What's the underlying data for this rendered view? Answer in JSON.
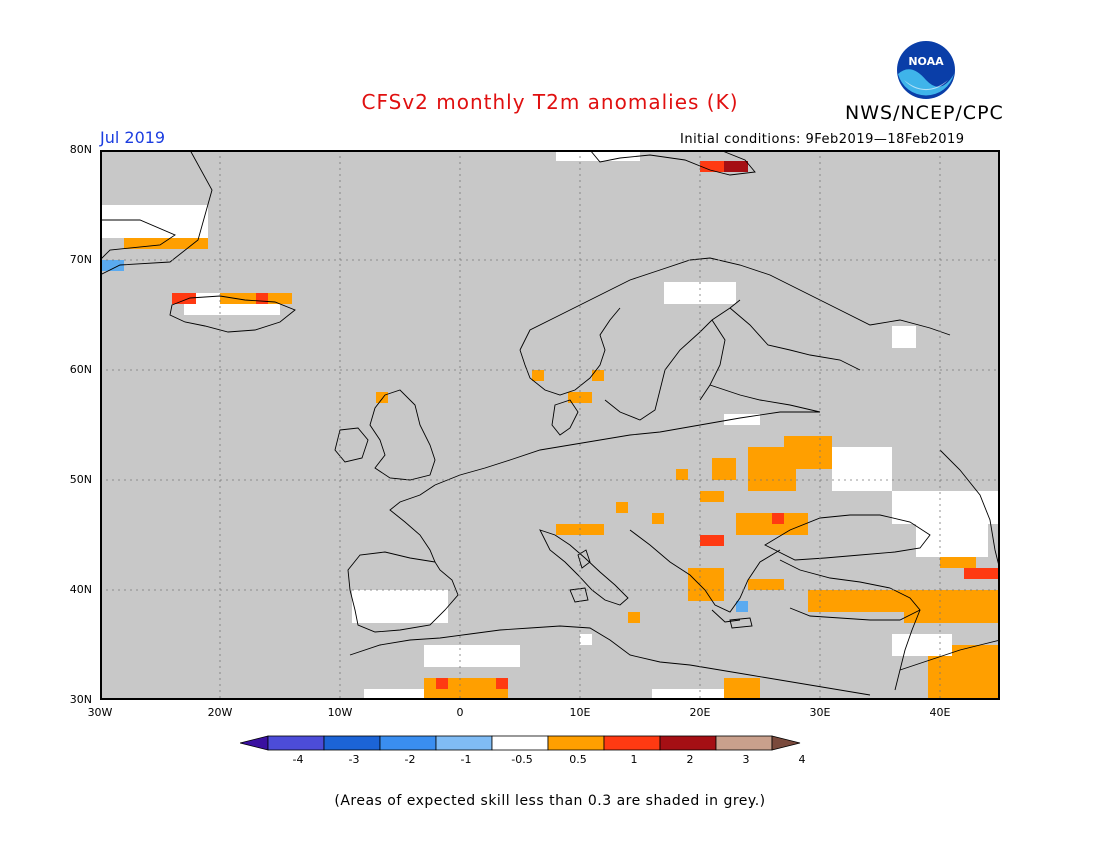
{
  "title": "CFSv2 monthly T2m anomalies (K)",
  "agency": "NWS/NCEP/CPC",
  "logo_text": "NOAA",
  "month": "Jul 2019",
  "initial_conditions": "Initial conditions: 9Feb2019—18Feb2019",
  "note": "(Areas of expected skill less than 0.3 are shaded in grey.)",
  "map": {
    "lon_range": [
      -30,
      45
    ],
    "lat_range": [
      30,
      80
    ],
    "lat_labels": [
      "80N",
      "70N",
      "60N",
      "50N",
      "40N",
      "30N"
    ],
    "lon_labels": [
      "30W",
      "20W",
      "10W",
      "0",
      "10E",
      "20E",
      "30E",
      "40E"
    ],
    "background_color": "#c8c8c8",
    "colors": {
      "grey": "#c8c8c8",
      "white": "#ffffff",
      "orange": "#ff9f00",
      "red": "#ff3a12",
      "darkred": "#a50f14",
      "lightblue": "#5aaaf0"
    },
    "anomaly_cells": [
      {
        "lon": -30,
        "lat": 72,
        "w": 9,
        "h": 3,
        "color": "white"
      },
      {
        "lon": -28,
        "lat": 71,
        "w": 7,
        "h": 1,
        "color": "orange"
      },
      {
        "lon": -30,
        "lat": 69,
        "w": 2,
        "h": 1,
        "color": "lightblue"
      },
      {
        "lon": -23,
        "lat": 65,
        "w": 8,
        "h": 2,
        "color": "white"
      },
      {
        "lon": -20,
        "lat": 66,
        "w": 6,
        "h": 1,
        "color": "orange"
      },
      {
        "lon": -24,
        "lat": 66,
        "w": 2,
        "h": 1,
        "color": "red"
      },
      {
        "lon": -17,
        "lat": 66,
        "w": 1,
        "h": 1,
        "color": "red"
      },
      {
        "lon": 8,
        "lat": 79,
        "w": 7,
        "h": 1,
        "color": "white"
      },
      {
        "lon": 20,
        "lat": 78,
        "w": 4,
        "h": 1,
        "color": "red"
      },
      {
        "lon": 22,
        "lat": 78,
        "w": 2,
        "h": 1,
        "color": "darkred"
      },
      {
        "lon": 17,
        "lat": 66,
        "w": 6,
        "h": 2,
        "color": "white"
      },
      {
        "lon": 36,
        "lat": 62,
        "w": 2,
        "h": 2,
        "color": "white"
      },
      {
        "lon": 6,
        "lat": 59,
        "w": 1,
        "h": 1,
        "color": "orange"
      },
      {
        "lon": 9,
        "lat": 57,
        "w": 2,
        "h": 1,
        "color": "orange"
      },
      {
        "lon": 11,
        "lat": 59,
        "w": 1,
        "h": 1,
        "color": "orange"
      },
      {
        "lon": -7,
        "lat": 57,
        "w": 1,
        "h": 1,
        "color": "orange"
      },
      {
        "lon": 22,
        "lat": 55,
        "w": 3,
        "h": 1,
        "color": "white"
      },
      {
        "lon": 27,
        "lat": 51,
        "w": 4,
        "h": 3,
        "color": "orange"
      },
      {
        "lon": 24,
        "lat": 49,
        "w": 4,
        "h": 4,
        "color": "orange"
      },
      {
        "lon": 21,
        "lat": 50,
        "w": 2,
        "h": 2,
        "color": "orange"
      },
      {
        "lon": 18,
        "lat": 50,
        "w": 1,
        "h": 1,
        "color": "orange"
      },
      {
        "lon": 20,
        "lat": 48,
        "w": 2,
        "h": 1,
        "color": "orange"
      },
      {
        "lon": 31,
        "lat": 49,
        "w": 5,
        "h": 4,
        "color": "white"
      },
      {
        "lon": 36,
        "lat": 46,
        "w": 9,
        "h": 3,
        "color": "white"
      },
      {
        "lon": 23,
        "lat": 45,
        "w": 6,
        "h": 2,
        "color": "orange"
      },
      {
        "lon": 26,
        "lat": 46,
        "w": 1,
        "h": 1,
        "color": "red"
      },
      {
        "lon": 20,
        "lat": 44,
        "w": 2,
        "h": 1,
        "color": "red"
      },
      {
        "lon": 8,
        "lat": 45,
        "w": 4,
        "h": 1,
        "color": "orange"
      },
      {
        "lon": 16,
        "lat": 46,
        "w": 1,
        "h": 1,
        "color": "orange"
      },
      {
        "lon": 13,
        "lat": 47,
        "w": 1,
        "h": 1,
        "color": "orange"
      },
      {
        "lon": 38,
        "lat": 43,
        "w": 6,
        "h": 3,
        "color": "white"
      },
      {
        "lon": 40,
        "lat": 42,
        "w": 3,
        "h": 1,
        "color": "orange"
      },
      {
        "lon": 42,
        "lat": 41,
        "w": 3,
        "h": 1,
        "color": "red"
      },
      {
        "lon": 29,
        "lat": 38,
        "w": 10,
        "h": 2,
        "color": "orange"
      },
      {
        "lon": 37,
        "lat": 37,
        "w": 8,
        "h": 3,
        "color": "orange"
      },
      {
        "lon": 39,
        "lat": 30,
        "w": 6,
        "h": 5,
        "color": "orange"
      },
      {
        "lon": 36,
        "lat": 34,
        "w": 5,
        "h": 2,
        "color": "white"
      },
      {
        "lon": 19,
        "lat": 39,
        "w": 3,
        "h": 3,
        "color": "orange"
      },
      {
        "lon": 24,
        "lat": 40,
        "w": 3,
        "h": 1,
        "color": "orange"
      },
      {
        "lon": 23,
        "lat": 38,
        "w": 1,
        "h": 1,
        "color": "lightblue"
      },
      {
        "lon": -9,
        "lat": 37,
        "w": 8,
        "h": 3,
        "color": "white"
      },
      {
        "lon": -3,
        "lat": 33,
        "w": 8,
        "h": 2,
        "color": "white"
      },
      {
        "lon": -3,
        "lat": 30,
        "w": 7,
        "h": 2,
        "color": "orange"
      },
      {
        "lon": -2,
        "lat": 31,
        "w": 1,
        "h": 1,
        "color": "red"
      },
      {
        "lon": 3,
        "lat": 31,
        "w": 1,
        "h": 1,
        "color": "red"
      },
      {
        "lon": -8,
        "lat": 30,
        "w": 5,
        "h": 1,
        "color": "white"
      },
      {
        "lon": 22,
        "lat": 30,
        "w": 3,
        "h": 2,
        "color": "orange"
      },
      {
        "lon": 16,
        "lat": 30,
        "w": 6,
        "h": 1,
        "color": "white"
      },
      {
        "lon": 14,
        "lat": 37,
        "w": 1,
        "h": 1,
        "color": "orange"
      },
      {
        "lon": 10,
        "lat": 35,
        "w": 1,
        "h": 1,
        "color": "white"
      }
    ]
  },
  "colorbar": {
    "levels": [
      "-4",
      "-3",
      "-2",
      "-1",
      "-0.5",
      "0.5",
      "1",
      "2",
      "3",
      "4"
    ],
    "colors": [
      "#3a10a0",
      "#4c4cd8",
      "#1c64d6",
      "#3a8ef0",
      "#80bcf5",
      "#ffffff",
      "#ff9f00",
      "#ff3a12",
      "#a50f14",
      "#c9a08c",
      "#7a4a3c"
    ]
  }
}
